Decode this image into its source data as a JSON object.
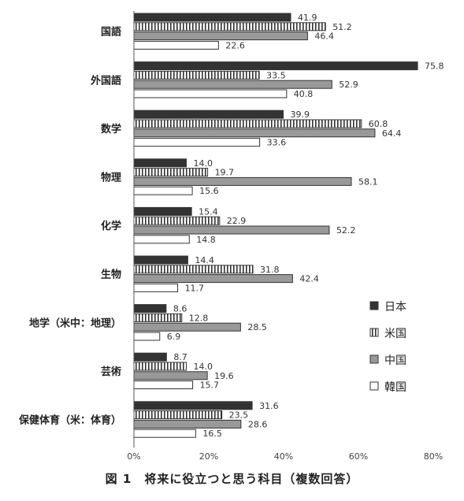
{
  "caption": "図 1　将来に役立つと思う科目（複数回答）",
  "colors": {
    "japan": "#333333",
    "us_stroke": "#333333",
    "china": "#999999",
    "korea": "#ffffff",
    "axis": "#555555"
  },
  "chart_data": {
    "type": "bar",
    "orientation": "horizontal",
    "categories": [
      "国語",
      "外国語",
      "数学",
      "物理",
      "化学",
      "生物",
      "地学（米中：地理）",
      "芸術",
      "保健体育（米：体育）"
    ],
    "series": [
      {
        "name": "日本",
        "values": [
          41.9,
          75.8,
          39.9,
          14.0,
          15.4,
          14.4,
          8.6,
          8.7,
          31.6
        ]
      },
      {
        "name": "米国",
        "values": [
          51.2,
          33.5,
          60.8,
          19.7,
          22.9,
          31.8,
          12.8,
          14.0,
          23.5
        ]
      },
      {
        "name": "中国",
        "values": [
          46.4,
          52.9,
          64.4,
          58.1,
          52.2,
          42.4,
          28.5,
          19.6,
          28.6
        ]
      },
      {
        "name": "韓国",
        "values": [
          22.6,
          40.8,
          33.6,
          15.6,
          14.8,
          11.7,
          6.9,
          15.7,
          16.5
        ]
      }
    ],
    "value_labels": [
      [
        "41.9",
        "75.8",
        "39.9",
        "14.0",
        "15.4",
        "14.4",
        "8.6",
        "8.7",
        "31.6"
      ],
      [
        "51.2",
        "33.5",
        "60.8",
        "19.7",
        "22.9",
        "31.8",
        "12.8",
        "14.0",
        "23.5"
      ],
      [
        "46.4",
        "52.9",
        "64.4",
        "58.1",
        "52.2",
        "42.4",
        "28.5",
        "19.6",
        "28.6"
      ],
      [
        "22.6",
        "40.8",
        "33.6",
        "15.6",
        "14.8",
        "11.7",
        "6.9",
        "15.7",
        "16.5"
      ]
    ],
    "xlim": [
      0,
      80
    ],
    "xticks": [
      0,
      20,
      40,
      60,
      80
    ],
    "xtick_labels": [
      "0%",
      "20%",
      "40%",
      "60%",
      "80%"
    ],
    "grid": false,
    "legend_position": "right"
  }
}
